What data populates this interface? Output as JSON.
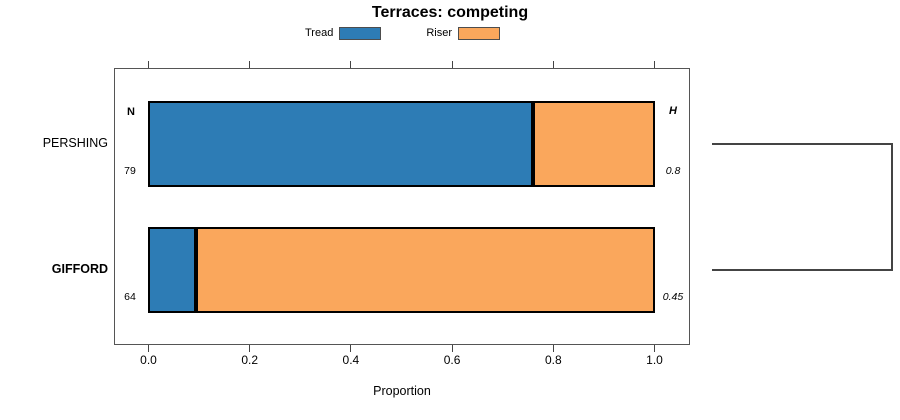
{
  "chart_data": {
    "type": "bar",
    "orientation": "horizontal",
    "stacked": true,
    "title": "Terraces: competing",
    "xlabel": "Proportion",
    "xlim": [
      0,
      1
    ],
    "x_ticks": [
      0.0,
      0.2,
      0.4,
      0.6,
      0.8,
      1.0
    ],
    "x_tick_labels": [
      "0.0",
      "0.2",
      "0.4",
      "0.6",
      "0.8",
      "1.0"
    ],
    "grid": false,
    "legend_position": "top-center",
    "categories": [
      "PERSHING",
      "GIFFORD"
    ],
    "category_emphasis": [
      false,
      true
    ],
    "series": [
      {
        "name": "Tread",
        "color": "#2D7CB5",
        "values": [
          0.759,
          0.094
        ]
      },
      {
        "name": "Riser",
        "color": "#FAA75C",
        "values": [
          0.241,
          0.906
        ]
      }
    ],
    "row_annotations": {
      "left_header": "N",
      "right_header": "H",
      "left_values": [
        "79",
        "64"
      ],
      "right_values": [
        "0.8",
        "0.45"
      ]
    },
    "bracket": {
      "side": "right",
      "connects": [
        "PERSHING",
        "GIFFORD"
      ]
    }
  }
}
